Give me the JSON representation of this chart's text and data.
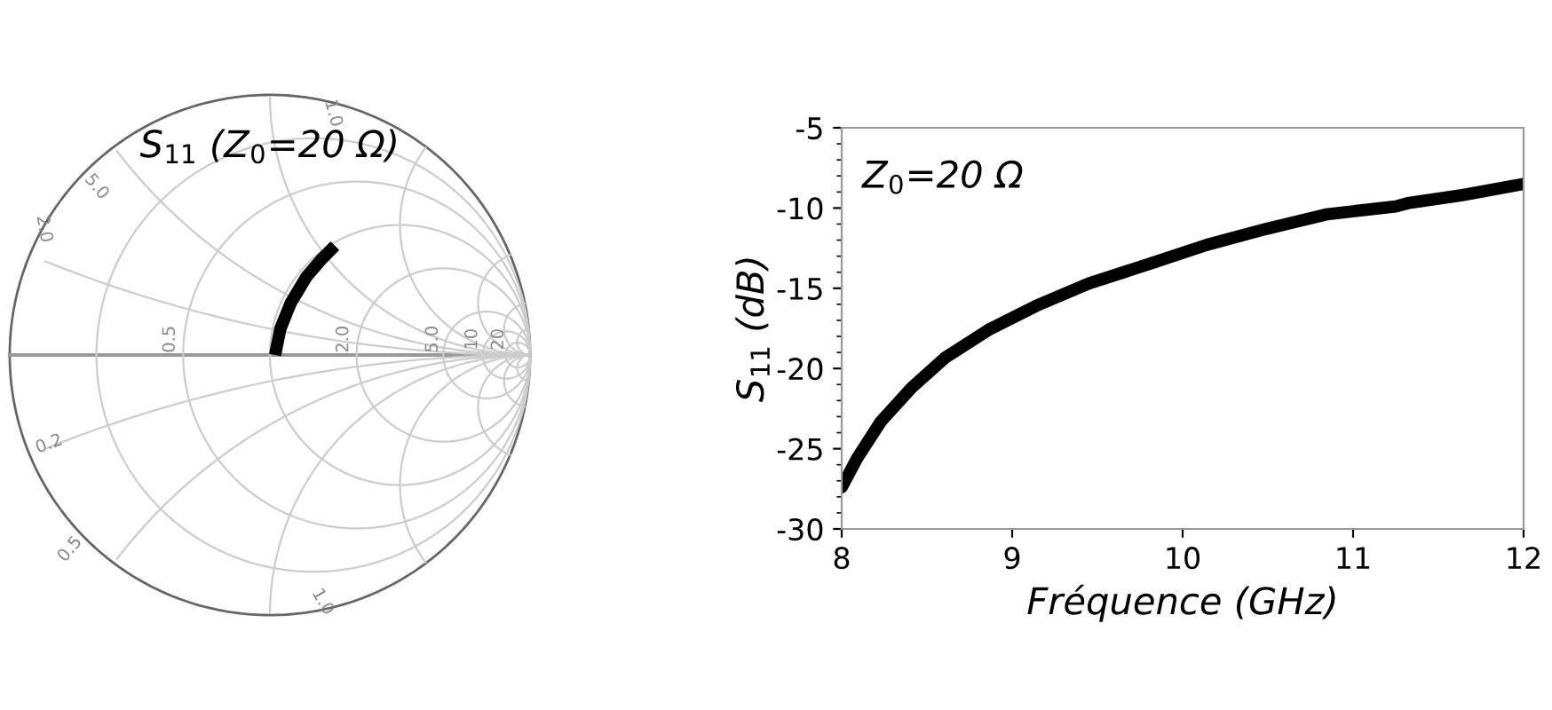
{
  "chart_data": [
    {
      "type": "other",
      "title": "S$_{11}$ (Z$_{0}$=20 Ω)",
      "annotations": [
        "1.0",
        "5.0",
        "2.0",
        "0.5",
        "2.0",
        "5.0",
        "10",
        "20",
        "0.2",
        "0.5",
        "1.0"
      ]
    },
    {
      "type": "line",
      "xlabel": "Fréquence (GHz)",
      "ylabel": "S$_{11}$ (dB)",
      "x": [
        8.0,
        8.09,
        8.23,
        8.41,
        8.61,
        8.86,
        9.14,
        9.45,
        9.8,
        10.14,
        10.49,
        10.84,
        11.25,
        11.32,
        11.64,
        12.0
      ],
      "series": [
        {
          "color": "#000000",
          "values": [
            -27.4,
            -25.6,
            -23.3,
            -21.2,
            -19.3,
            -17.6,
            -16.1,
            -14.7,
            -13.5,
            -12.3,
            -11.3,
            -10.4,
            -9.9,
            -9.7,
            -9.2,
            -8.5
          ]
        }
      ],
      "xlim": [
        8,
        12
      ],
      "ylim": [
        -30,
        -5
      ],
      "xticks": [
        8,
        9,
        10,
        11,
        12
      ],
      "yticks": [
        -30,
        -25,
        -20,
        -15,
        -10,
        -5
      ],
      "annotations": [
        "Z$_{0}$=20 Ω"
      ]
    }
  ]
}
